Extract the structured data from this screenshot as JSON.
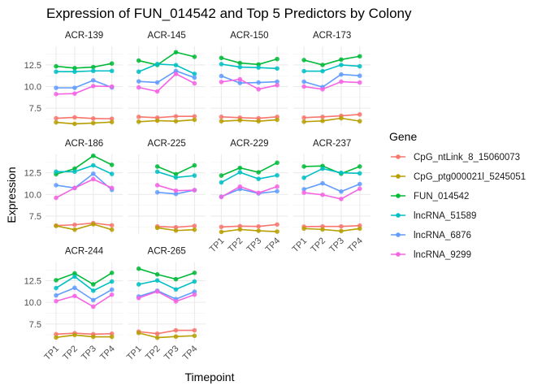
{
  "chart_data": {
    "type": "line",
    "title": "Expression of FUN_014542 and Top 5 Predictors by Colony",
    "xlabel": "Timepoint",
    "ylabel": "Expression",
    "categories": [
      "TP1",
      "TP2",
      "TP3",
      "TP4"
    ],
    "y_ticks": [
      7.5,
      10.0,
      12.5
    ],
    "y_tick_labels": [
      "7.5",
      "10.0",
      "12.5"
    ],
    "ylim": [
      5.45,
      14.65
    ],
    "grid": true,
    "facet_by": "Colony",
    "legend": {
      "title": "Gene",
      "placement": "right",
      "entries": [
        "CpG_ntLink_8_15060073",
        "CpG_ptg000021l_5245051",
        "FUN_014542",
        "lncRNA_51589",
        "lncRNA_6876",
        "lncRNA_9299"
      ],
      "colors": [
        "#F8766D",
        "#B79F00",
        "#00BA38",
        "#00BFC4",
        "#619CFF",
        "#F564E3"
      ]
    },
    "panels": [
      {
        "name": "ACR-139",
        "series": [
          [
            6.34,
            6.44,
            6.31,
            6.28
          ],
          [
            5.87,
            5.69,
            5.78,
            5.9
          ],
          [
            12.34,
            12.13,
            12.25,
            12.66
          ],
          [
            11.72,
            11.72,
            11.81,
            11.81
          ],
          [
            9.85,
            9.85,
            10.72,
            9.9
          ],
          [
            9.13,
            9.19,
            10.06,
            10.0
          ]
        ]
      },
      {
        "name": "ACR-145",
        "series": [
          [
            6.5,
            6.41,
            6.56,
            6.56
          ],
          [
            5.94,
            6.06,
            6.0,
            6.16
          ],
          [
            13.0,
            12.5,
            13.97,
            13.44
          ],
          [
            11.72,
            12.6,
            12.48,
            11.47
          ],
          [
            10.6,
            10.47,
            11.81,
            11.03
          ],
          [
            9.9,
            9.44,
            11.47,
            10.37
          ]
        ]
      },
      {
        "name": "ACR-150",
        "series": [
          [
            6.5,
            6.41,
            6.34,
            6.5
          ],
          [
            6.0,
            6.1,
            6.0,
            6.16
          ],
          [
            13.31,
            12.72,
            12.56,
            13.18
          ],
          [
            12.59,
            12.25,
            12.19,
            12.09
          ],
          [
            11.22,
            10.41,
            10.47,
            10.56
          ],
          [
            10.53,
            10.84,
            9.69,
            10.16
          ]
        ]
      },
      {
        "name": "ACR-173",
        "series": [
          [
            6.41,
            6.5,
            6.62,
            6.78
          ],
          [
            5.94,
            6.03,
            6.34,
            6.0
          ],
          [
            13.06,
            12.5,
            13.12,
            13.5
          ],
          [
            11.78,
            11.78,
            12.5,
            12.34
          ],
          [
            10.56,
            9.94,
            11.4,
            11.25
          ],
          [
            10.0,
            9.69,
            10.56,
            10.47
          ]
        ]
      },
      {
        "name": "ACR-186",
        "series": [
          [
            6.4,
            6.5,
            6.69,
            6.44
          ],
          [
            6.37,
            5.93,
            6.56,
            5.93
          ],
          [
            12.34,
            12.98,
            14.47,
            13.42
          ],
          [
            12.63,
            12.63,
            13.36,
            12.37
          ],
          [
            11.07,
            10.75,
            12.4,
            10.53
          ],
          [
            9.61,
            10.75,
            11.77,
            10.75
          ]
        ]
      },
      {
        "name": "ACR-225",
        "series": [
          [
            null,
            6.31,
            6.21,
            6.37
          ],
          [
            null,
            6.15,
            5.83,
            5.93
          ],
          [
            null,
            13.23,
            12.34,
            13.36
          ],
          [
            null,
            12.63,
            11.96,
            12.18
          ],
          [
            null,
            10.25,
            10.06,
            10.5
          ],
          [
            null,
            11.07,
            10.44,
            10.5
          ]
        ]
      },
      {
        "name": "ACR-229",
        "series": [
          [
            6.25,
            6.34,
            6.31,
            6.53
          ],
          [
            5.67,
            5.96,
            5.8,
            5.71
          ],
          [
            12.18,
            13.07,
            12.56,
            13.67
          ],
          [
            11.39,
            12.56,
            11.8,
            12.21
          ],
          [
            9.74,
            10.63,
            10.12,
            10.37
          ],
          [
            9.71,
            10.91,
            10.18,
            10.91
          ]
        ]
      },
      {
        "name": "ACR-237",
        "series": [
          [
            6.28,
            6.31,
            6.31,
            6.4
          ],
          [
            6.06,
            5.96,
            5.77,
            6.06
          ],
          [
            13.23,
            13.29,
            12.4,
            13.23
          ],
          [
            11.93,
            12.98,
            12.5,
            12.44
          ],
          [
            10.6,
            11.29,
            10.34,
            11.2
          ],
          [
            10.21,
            9.96,
            9.48,
            10.66
          ]
        ]
      },
      {
        "name": "ACR-244",
        "series": [
          [
            6.32,
            6.44,
            6.32,
            6.38
          ],
          [
            5.95,
            6.23,
            6.02,
            6.02
          ],
          [
            12.56,
            13.35,
            12.08,
            13.41
          ],
          [
            11.65,
            12.98,
            11.35,
            12.41
          ],
          [
            10.8,
            11.68,
            10.26,
            11.47
          ],
          [
            10.14,
            10.74,
            9.5,
            10.89
          ]
        ]
      },
      {
        "name": "ACR-265",
        "series": [
          [
            6.62,
            6.38,
            6.77,
            6.77
          ],
          [
            6.47,
            5.92,
            6.05,
            6.14
          ],
          [
            13.89,
            13.23,
            12.68,
            13.41
          ],
          [
            12.08,
            12.53,
            11.5,
            12.41
          ],
          [
            10.68,
            11.35,
            10.38,
            11.23
          ],
          [
            10.5,
            11.26,
            10.11,
            10.89
          ]
        ]
      }
    ]
  }
}
